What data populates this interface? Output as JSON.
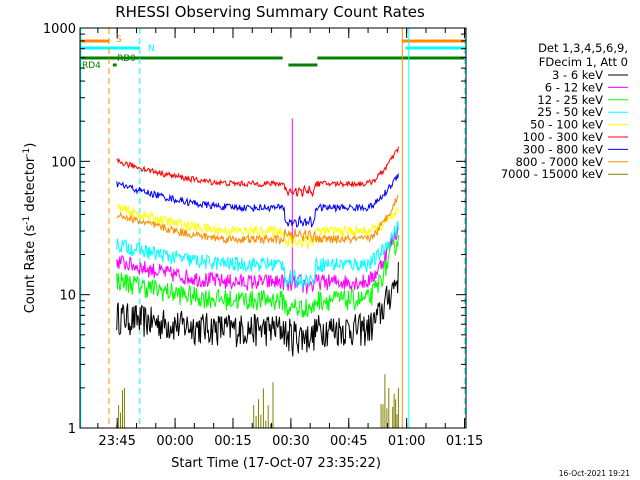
{
  "chart_data": {
    "type": "line",
    "title": "RHESSI Observing Summary Count Rates",
    "xlabel": "Start Time (17-Oct-07 23:35:22)",
    "ylabel_parts": [
      "Count Rate (s",
      "-1",
      " detector",
      "-1",
      ")"
    ],
    "y_scale": "log",
    "ylim": [
      1,
      1000
    ],
    "y_ticks": [
      {
        "value": 1,
        "label": "1"
      },
      {
        "value": 10,
        "label": "10"
      },
      {
        "value": 100,
        "label": "100"
      },
      {
        "value": 1000,
        "label": "1000"
      }
    ],
    "xlim_minutes": [
      0,
      100
    ],
    "x_ticks": [
      {
        "minutes": 9.63,
        "label": "23:45"
      },
      {
        "minutes": 24.63,
        "label": "00:00"
      },
      {
        "minutes": 39.63,
        "label": "00:15"
      },
      {
        "minutes": 54.63,
        "label": "00:30"
      },
      {
        "minutes": 69.63,
        "label": "00:45"
      },
      {
        "minutes": 84.63,
        "label": "01:00"
      },
      {
        "minutes": 99.63,
        "label": "01:15"
      }
    ],
    "legend_header": [
      "Det 1,3,4,5,6,9,",
      "FDecim 1, Att 0"
    ],
    "series": [
      {
        "name": "3 - 6 keV",
        "color": "#000000",
        "start": 7,
        "min": 5.6,
        "end": 14,
        "step_level": 5.0,
        "noise": 0.28
      },
      {
        "name": "6 - 12 keV",
        "color": "#ff00ff",
        "start": 18,
        "min": 12.5,
        "end": 32,
        "step_level": 12.0,
        "noise": 0.14,
        "spike": 210
      },
      {
        "name": "12 - 25 keV",
        "color": "#00ff00",
        "start": 13,
        "min": 9.2,
        "end": 27,
        "step_level": 8.0,
        "noise": 0.18
      },
      {
        "name": "25 - 50 keV",
        "color": "#00ffff",
        "start": 24,
        "min": 17,
        "end": 33,
        "step_level": 13,
        "noise": 0.13
      },
      {
        "name": "50 - 100 keV",
        "color": "#ffff00",
        "start": 45,
        "min": 30,
        "end": 42,
        "step_level": 25,
        "noise": 0.09
      },
      {
        "name": "100 - 300 keV",
        "color": "#ff0000",
        "start": 100,
        "min": 68,
        "end": 125,
        "step_level": 60,
        "noise": 0.05
      },
      {
        "name": "300 - 800 keV",
        "color": "#0000ff",
        "start": 68,
        "min": 45,
        "end": 80,
        "step_level": 35,
        "noise": 0.06
      },
      {
        "name": "800 - 7000 keV",
        "color": "#ff8c00",
        "start": 40,
        "min": 26,
        "end": 55,
        "step_level": 28,
        "noise": 0.07
      },
      {
        "name": "7000 - 15000 keV",
        "color": "#808000",
        "start": 1,
        "min": 1,
        "end": 2.8,
        "step_level": 1,
        "noise": 0.0
      }
    ],
    "flag_bars": [
      {
        "label": "S",
        "color": "#ff8c00",
        "segments": [
          [
            0,
            7.5
          ],
          [
            83.5,
            100
          ]
        ]
      },
      {
        "label": "N",
        "color": "#00ffff",
        "segments": [
          [
            0,
            15.5
          ],
          [
            84.3,
            100
          ]
        ]
      },
      {
        "label": "RD0",
        "color": "#008000",
        "segments": [
          [
            0,
            52.5
          ],
          [
            54.0,
            61.5
          ],
          [
            61.5,
            100
          ]
        ]
      },
      {
        "label": "RD4",
        "color": "#008000",
        "segments": [
          [
            8.5,
            9.5
          ]
        ]
      }
    ],
    "vertical_lines": [
      {
        "minutes": 0.2,
        "color": "#00ffff",
        "style": "solid"
      },
      {
        "minutes": 7.5,
        "color": "#ff8c00",
        "style": "dashed"
      },
      {
        "minutes": 15.5,
        "color": "#00ffff",
        "style": "dashed"
      },
      {
        "minutes": 83.5,
        "color": "#ff8c00",
        "style": "solid"
      },
      {
        "minutes": 85.2,
        "color": "#00ffff",
        "style": "solid"
      },
      {
        "minutes": 99.7,
        "color": "#00ffff",
        "style": "dashed"
      }
    ],
    "data_window_minutes": [
      9.5,
      82.5
    ],
    "dip_window_minutes": [
      53.0,
      61.0
    ],
    "timestamp": "16-Oct-2021 19:21"
  }
}
